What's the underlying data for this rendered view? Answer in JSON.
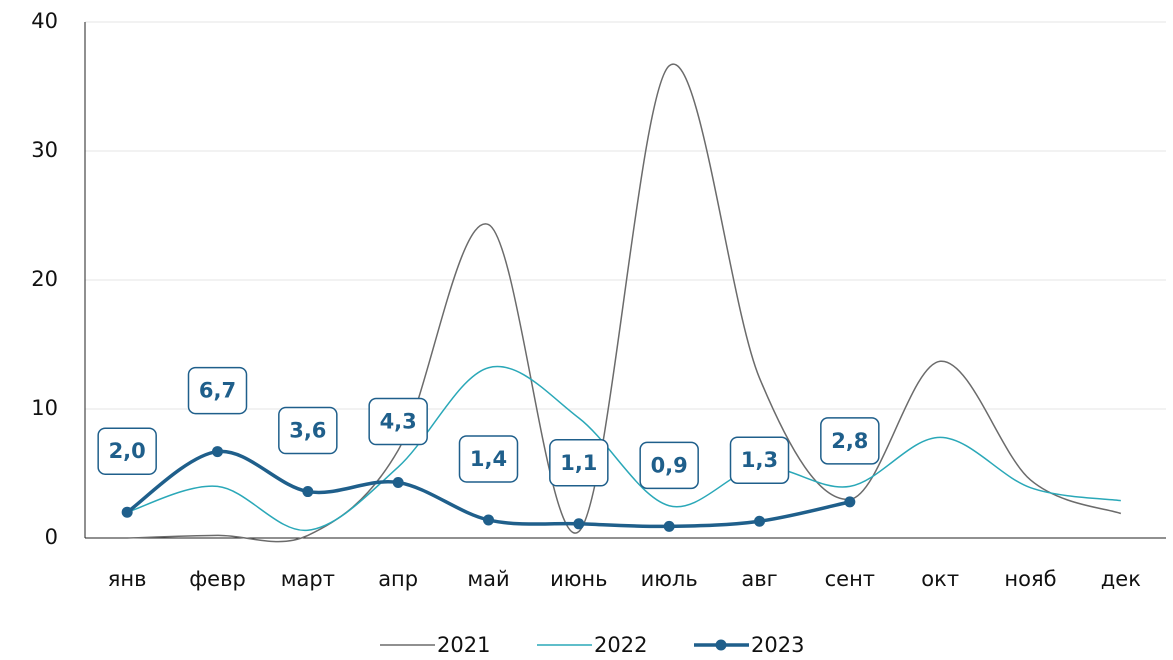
{
  "chart_data": {
    "type": "line",
    "categories": [
      "янв",
      "февр",
      "март",
      "апр",
      "май",
      "июнь",
      "июль",
      "авг",
      "сент",
      "окт",
      "нояб",
      "дек"
    ],
    "series": [
      {
        "name": "2021",
        "color": "#6b6b6b",
        "values": [
          0,
          0.2,
          0.2,
          6.8,
          24.3,
          0.5,
          36.6,
          12.4,
          3.0,
          13.7,
          4.5,
          1.9
        ]
      },
      {
        "name": "2022",
        "color": "#2aa8b8",
        "values": [
          2.0,
          4.0,
          0.6,
          5.5,
          13.2,
          9.3,
          2.5,
          5.5,
          4.0,
          7.8,
          3.9,
          2.9
        ]
      },
      {
        "name": "2023",
        "color": "#1f5f8b",
        "values": [
          2.0,
          6.7,
          3.6,
          4.3,
          1.4,
          1.1,
          0.9,
          1.3,
          2.8,
          null,
          null,
          null
        ],
        "value_labels": [
          "2,0",
          "6,7",
          "3,6",
          "4,3",
          "1,4",
          "1,1",
          "0,9",
          "1,3",
          "2,8",
          null,
          null,
          null
        ]
      }
    ],
    "ylim": [
      0,
      40
    ],
    "yticks": [
      0,
      10,
      20,
      30,
      40
    ],
    "grid": true,
    "legend": "bottom"
  }
}
